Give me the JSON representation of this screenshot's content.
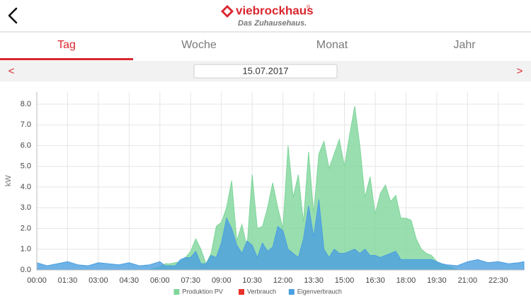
{
  "header": {
    "brand": "viebrockhaus",
    "registered": "®",
    "slogan": "Das Zuhausehaus."
  },
  "tabs": [
    "Tag",
    "Woche",
    "Monat",
    "Jahr"
  ],
  "date_bar": {
    "prev": "<",
    "date": "15.07.2017",
    "next": ">"
  },
  "chart_data": {
    "type": "area",
    "y_label": "kW",
    "x": [
      0,
      0.5,
      1,
      1.5,
      2,
      2.5,
      3,
      3.5,
      4,
      4.5,
      5,
      5.5,
      6,
      6.25,
      6.5,
      6.75,
      7,
      7.25,
      7.5,
      7.75,
      8,
      8.25,
      8.5,
      8.75,
      9,
      9.25,
      9.5,
      9.75,
      10,
      10.25,
      10.5,
      10.75,
      11,
      11.25,
      11.5,
      11.75,
      12,
      12.25,
      12.5,
      12.75,
      13,
      13.25,
      13.5,
      13.75,
      14,
      14.25,
      14.5,
      14.75,
      15,
      15.25,
      15.5,
      15.75,
      16,
      16.25,
      16.5,
      16.75,
      17,
      17.25,
      17.5,
      17.75,
      18,
      18.25,
      18.5,
      18.75,
      19,
      19.25,
      19.5,
      19.75,
      20,
      20.5,
      21,
      21.5,
      22,
      22.5,
      23,
      23.5,
      23.75
    ],
    "xlim": [
      0,
      23.75
    ],
    "xticks": [
      {
        "value": 0,
        "label": "00:00"
      },
      {
        "value": 1.5,
        "label": "01:30"
      },
      {
        "value": 3,
        "label": "03:00"
      },
      {
        "value": 4.5,
        "label": "04:30"
      },
      {
        "value": 6,
        "label": "06:00"
      },
      {
        "value": 7.5,
        "label": "07:30"
      },
      {
        "value": 9,
        "label": "09:00"
      },
      {
        "value": 10.5,
        "label": "10:30"
      },
      {
        "value": 12,
        "label": "12:00"
      },
      {
        "value": 13.5,
        "label": "13:30"
      },
      {
        "value": 15,
        "label": "15:00"
      },
      {
        "value": 16.5,
        "label": "16:30"
      },
      {
        "value": 18,
        "label": "18:00"
      },
      {
        "value": 19.5,
        "label": "19:30"
      },
      {
        "value": 21,
        "label": "21:00"
      },
      {
        "value": 22.5,
        "label": "22:30"
      }
    ],
    "ylim": [
      0,
      8.6
    ],
    "yticks": [
      {
        "value": 0,
        "label": "0.0"
      },
      {
        "value": 1,
        "label": "1.0"
      },
      {
        "value": 2,
        "label": "2.0"
      },
      {
        "value": 3,
        "label": "3.0"
      },
      {
        "value": 4,
        "label": "4.0"
      },
      {
        "value": 5,
        "label": "5.0"
      },
      {
        "value": 6,
        "label": "6.0"
      },
      {
        "value": 7,
        "label": "7.0"
      },
      {
        "value": 8,
        "label": "8.0"
      }
    ],
    "grid": true,
    "legend": "bottom",
    "series": [
      {
        "name": "Produktion PV",
        "color": "#7fd69b",
        "values": [
          0,
          0,
          0,
          0,
          0,
          0,
          0,
          0,
          0,
          0,
          0,
          0,
          0.15,
          0.3,
          0.3,
          0.35,
          0.4,
          0.6,
          0.9,
          1.5,
          1.0,
          0.3,
          0.8,
          2.1,
          2.3,
          3.0,
          4.3,
          1.4,
          2.2,
          1.1,
          4.6,
          2.0,
          2.1,
          3.0,
          4.2,
          3.0,
          2.0,
          6.0,
          3.5,
          4.6,
          2.3,
          5.7,
          2.7,
          5.6,
          6.2,
          4.9,
          5.6,
          6.3,
          5.0,
          6.5,
          7.9,
          6.0,
          3.5,
          4.5,
          2.7,
          3.7,
          4.1,
          3.3,
          3.6,
          2.5,
          2.5,
          2.4,
          1.5,
          1.0,
          0.8,
          0.7,
          0.4,
          0.3,
          0.2,
          0,
          0,
          0,
          0,
          0,
          0,
          0,
          0
        ]
      },
      {
        "name": "Verbrauch",
        "color": "#e8312a",
        "values": [
          null,
          null,
          null,
          null,
          null,
          null,
          null,
          null,
          null,
          null,
          null,
          null,
          null,
          null,
          null,
          null,
          null,
          null,
          null,
          null,
          null,
          null,
          null,
          null,
          null,
          null,
          null,
          null,
          null,
          null,
          null,
          null,
          null,
          null,
          null,
          null,
          null,
          null,
          null,
          null,
          null,
          null,
          null,
          null,
          null,
          null,
          null,
          null,
          null,
          null,
          null,
          null,
          null,
          null,
          null,
          null,
          null,
          null,
          null,
          null,
          null,
          null,
          null,
          null,
          null,
          null,
          null,
          null,
          null,
          null,
          null,
          null,
          null,
          null,
          null,
          null,
          null
        ]
      },
      {
        "name": "Eigenverbrauch",
        "color": "#4a9fe0",
        "values": [
          0.35,
          0.2,
          0.3,
          0.4,
          0.25,
          0.2,
          0.35,
          0.3,
          0.25,
          0.35,
          0.2,
          0.25,
          0.4,
          0.2,
          0.2,
          0.2,
          0.5,
          0.6,
          0.6,
          0.9,
          0.3,
          0.3,
          0.7,
          0.6,
          1.3,
          2.5,
          2.0,
          1.2,
          0.8,
          1.4,
          1.2,
          0.6,
          1.3,
          0.9,
          1.1,
          2.1,
          1.9,
          1.0,
          0.8,
          0.6,
          1.5,
          3.1,
          1.6,
          3.4,
          1.0,
          0.6,
          1.0,
          0.8,
          0.8,
          0.9,
          1.0,
          0.8,
          1.0,
          0.7,
          0.7,
          0.6,
          0.7,
          0.8,
          0.9,
          0.5,
          0.5,
          0.5,
          0.5,
          0.5,
          0.5,
          0.5,
          0.4,
          0.3,
          0.25,
          0.2,
          0.4,
          0.5,
          0.35,
          0.4,
          0.3,
          0.35,
          0.4
        ]
      }
    ]
  }
}
